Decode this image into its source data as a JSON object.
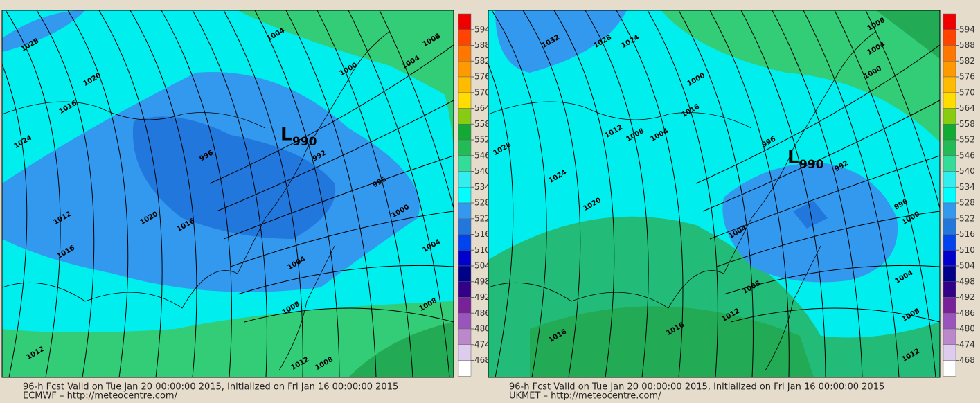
{
  "panels": [
    {
      "low": {
        "letter": "L",
        "value": "990"
      },
      "isobar_labels": [
        "1028",
        "1020",
        "1016",
        "1024",
        "1004",
        "1008",
        "1004",
        "1000",
        "996",
        "992",
        "996",
        "1000",
        "1004",
        "1004",
        "1008",
        "1012",
        "1008",
        "1012",
        "1016",
        "1020",
        "1016",
        "1012",
        "1008"
      ],
      "footer": [
        "96-h Fcst Valid on Tue Jan 20 00:00:00 2015, Initialized on Fri Jan 16 00:00:00 2015",
        "ECMWF  – http://meteocentre.com/"
      ]
    },
    {
      "low": {
        "letter": "L",
        "value": "990"
      },
      "isobar_labels": [
        "1032",
        "1028",
        "1024",
        "1008",
        "1004",
        "1000",
        "1000",
        "1004",
        "1008",
        "1012",
        "1016",
        "1028",
        "1024",
        "1020",
        "996",
        "992",
        "996",
        "1000",
        "1004",
        "1004",
        "1008",
        "1008",
        "1012",
        "1016",
        "1016",
        "1012"
      ],
      "footer": [
        "96-h Fcst Valid on Tue Jan 20 00:00:00 2015, Initialized on Fri Jan 16 00:00:00 2015",
        "UKMET  – http://meteocentre.com/"
      ]
    }
  ],
  "colorbar": {
    "labels": [
      594,
      588,
      582,
      576,
      570,
      564,
      558,
      552,
      546,
      540,
      534,
      528,
      522,
      516,
      510,
      504,
      498,
      492,
      486,
      480,
      474,
      468
    ],
    "colors": [
      "#ee0000",
      "#ff4400",
      "#ff7700",
      "#ff9900",
      "#ffbb00",
      "#ffdd00",
      "#88cc11",
      "#11aa33",
      "#22bb55",
      "#33dd99",
      "#33eeee",
      "#00ffff",
      "#3399ee",
      "#2277dd",
      "#0044ee",
      "#0000cc",
      "#000088",
      "#330088",
      "#772299",
      "#9955bb",
      "#bb88cc",
      "#ddccee",
      "#ffffff"
    ]
  }
}
